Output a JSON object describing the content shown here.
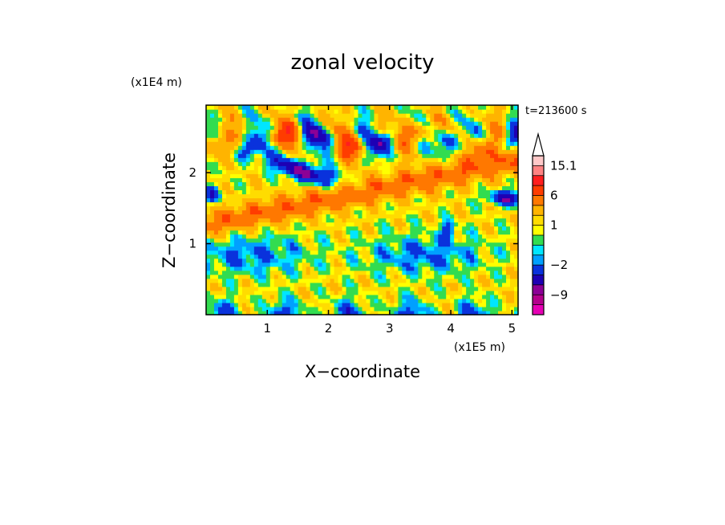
{
  "chart_data": {
    "type": "heatmap",
    "title": "zonal velocity",
    "xlabel": "X−coordinate",
    "ylabel": "Z−coordinate",
    "x_unit": "(x1E5 m)",
    "y_unit": "(x1E4 m)",
    "time_label": "t=213600 s",
    "xlim": [
      0,
      5.1
    ],
    "ylim": [
      0,
      2.95
    ],
    "x_ticks": [
      "1",
      "2",
      "3",
      "4",
      "5"
    ],
    "y_ticks": [
      "1",
      "2"
    ],
    "colorbar": {
      "levels": [
        -15,
        -12,
        -9,
        -6,
        -4,
        -2,
        -1,
        -0.5,
        0.5,
        1,
        2,
        4,
        6,
        9,
        12,
        15.1
      ],
      "colors": [
        "#e600b4",
        "#b4008c",
        "#8c0096",
        "#1e00b4",
        "#0a32dc",
        "#00a0ff",
        "#00e6ff",
        "#32dc50",
        "#ffff00",
        "#ffdc00",
        "#ffb400",
        "#ff7800",
        "#ff3c00",
        "#ff1e1e",
        "#ff8282",
        "#ffc8c8"
      ],
      "tick_labels": [
        {
          "label": "15.1",
          "value": 15.1
        },
        {
          "label": "6",
          "value": 6
        },
        {
          "label": "1",
          "value": 1
        },
        {
          "label": "−2",
          "value": -2
        },
        {
          "label": "−9",
          "value": -9
        }
      ],
      "extend": "max"
    }
  }
}
